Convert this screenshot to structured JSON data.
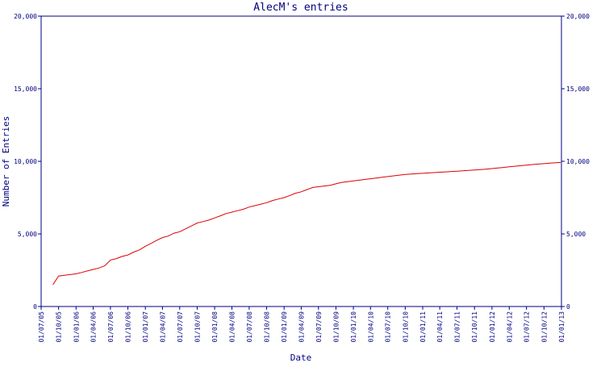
{
  "chart_data": {
    "type": "line",
    "title": "AlecM's entries",
    "xlabel": "Date",
    "ylabel": "Number of Entries",
    "ylim": [
      0,
      20000
    ],
    "y_ticks": [
      0,
      5000,
      10000,
      15000,
      20000
    ],
    "y_tick_labels": [
      "0",
      "5,000",
      "10,000",
      "15,000",
      "20,000"
    ],
    "x_ticks": [
      "01/07/05",
      "01/10/05",
      "01/01/06",
      "01/04/06",
      "01/07/06",
      "01/10/06",
      "01/01/07",
      "01/04/07",
      "01/07/07",
      "01/10/07",
      "01/01/08",
      "01/04/08",
      "01/07/08",
      "01/10/08",
      "01/01/09",
      "01/04/09",
      "01/07/09",
      "01/10/09",
      "01/01/10",
      "01/04/10",
      "01/07/10",
      "01/10/10",
      "01/01/11",
      "01/04/11",
      "01/07/11",
      "01/10/11",
      "01/01/12",
      "01/04/12",
      "01/07/12",
      "01/10/12",
      "01/01/13"
    ],
    "grid": false,
    "colors": {
      "line": "#dd0000",
      "axis": "#000080",
      "text": "#000080"
    },
    "series": [
      {
        "x": [
          "2005-09-01",
          "2005-10-01",
          "2005-11-01",
          "2005-12-01",
          "2006-01-01",
          "2006-02-01",
          "2006-03-01",
          "2006-04-01",
          "2006-05-01",
          "2006-06-01",
          "2006-07-01",
          "2006-08-01",
          "2006-09-01",
          "2006-10-01",
          "2006-11-01",
          "2006-12-01",
          "2007-01-01",
          "2007-02-01",
          "2007-03-01",
          "2007-04-01",
          "2007-05-01",
          "2007-06-01",
          "2007-07-01",
          "2007-08-01",
          "2007-09-01",
          "2007-10-01",
          "2007-11-01",
          "2007-12-01",
          "2008-01-01",
          "2008-02-01",
          "2008-03-01",
          "2008-04-01",
          "2008-05-01",
          "2008-06-01",
          "2008-07-01",
          "2008-08-01",
          "2008-09-01",
          "2008-10-01",
          "2008-11-01",
          "2008-12-01",
          "2009-01-01",
          "2009-02-01",
          "2009-03-01",
          "2009-04-01",
          "2009-05-01",
          "2009-06-01",
          "2009-07-01",
          "2009-08-01",
          "2009-09-01",
          "2009-10-01",
          "2009-11-01",
          "2009-12-01",
          "2010-01-01",
          "2010-02-01",
          "2010-03-01",
          "2010-04-01",
          "2010-05-01",
          "2010-06-01",
          "2010-07-01",
          "2010-08-01",
          "2010-09-01",
          "2010-10-01",
          "2010-11-01",
          "2010-12-01",
          "2011-01-01",
          "2011-02-01",
          "2011-03-01",
          "2011-04-01",
          "2011-05-01",
          "2011-06-01",
          "2011-07-01",
          "2011-08-01",
          "2011-09-01",
          "2011-10-01",
          "2011-11-01",
          "2011-12-01",
          "2012-01-01",
          "2012-02-01",
          "2012-03-01",
          "2012-04-01",
          "2012-05-01",
          "2012-06-01",
          "2012-07-01",
          "2012-08-01",
          "2012-09-01",
          "2012-10-01",
          "2012-11-01",
          "2012-12-01",
          "2012-12-28"
        ],
        "values": [
          1500,
          2100,
          2150,
          2200,
          2250,
          2350,
          2450,
          2550,
          2650,
          2800,
          3200,
          3300,
          3450,
          3550,
          3750,
          3900,
          4150,
          4350,
          4550,
          4750,
          4850,
          5050,
          5150,
          5350,
          5550,
          5750,
          5850,
          5950,
          6100,
          6250,
          6400,
          6500,
          6600,
          6700,
          6850,
          6950,
          7050,
          7150,
          7300,
          7400,
          7500,
          7650,
          7800,
          7900,
          8050,
          8200,
          8250,
          8300,
          8350,
          8450,
          8550,
          8600,
          8650,
          8700,
          8750,
          8800,
          8850,
          8900,
          8950,
          9000,
          9050,
          9100,
          9120,
          9150,
          9170,
          9200,
          9220,
          9250,
          9270,
          9300,
          9320,
          9350,
          9370,
          9400,
          9430,
          9460,
          9500,
          9540,
          9580,
          9620,
          9660,
          9700,
          9740,
          9780,
          9810,
          9840,
          9870,
          9900,
          9920
        ]
      }
    ]
  }
}
